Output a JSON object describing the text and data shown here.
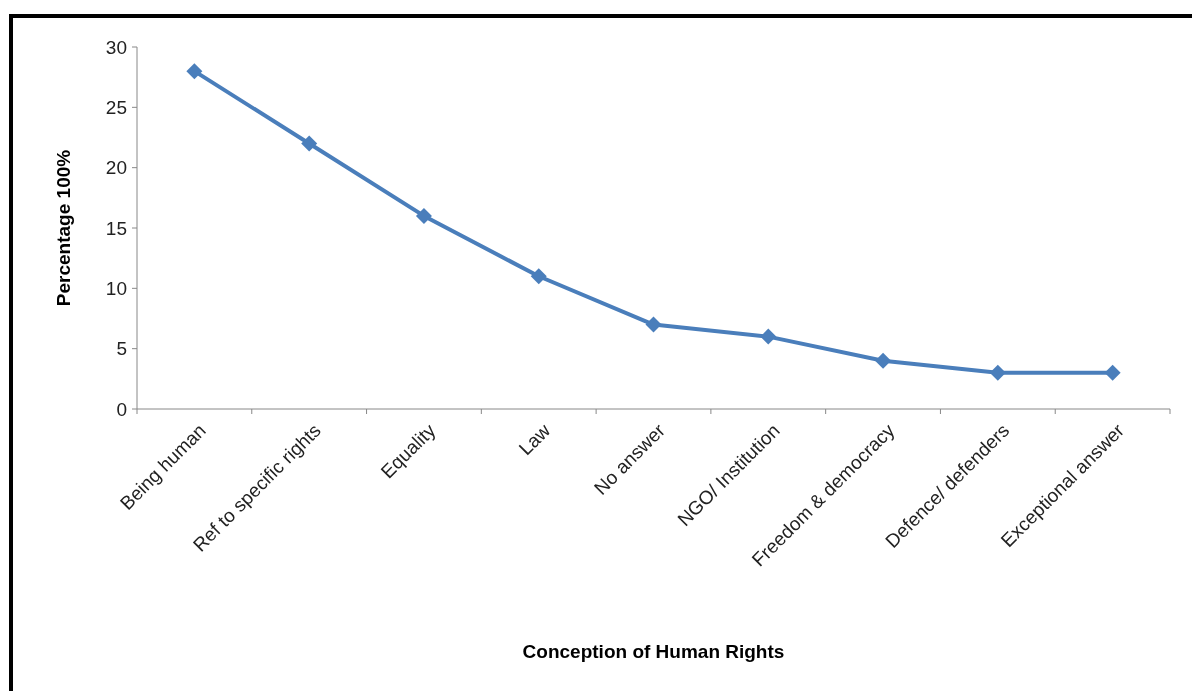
{
  "chart_data": {
    "type": "line",
    "xlabel": "Conception of Human Rights",
    "ylabel": "Percentage 100%",
    "categories": [
      "Being human",
      "Ref to specific rights",
      "Equality",
      "Law",
      "No answer",
      "NGO/ Institution",
      "Freedom & democracy",
      "Defence/ defenders",
      "Exceptional answer"
    ],
    "series": [
      {
        "color": "#4a7ebb",
        "values": [
          28,
          22,
          16,
          11,
          7,
          6,
          4,
          3,
          3
        ]
      }
    ],
    "ylim": [
      0,
      30
    ],
    "yticks": [
      0,
      5,
      10,
      15,
      20,
      25,
      30
    ],
    "grid": false,
    "marker": "diamond",
    "line_style": "solid"
  }
}
